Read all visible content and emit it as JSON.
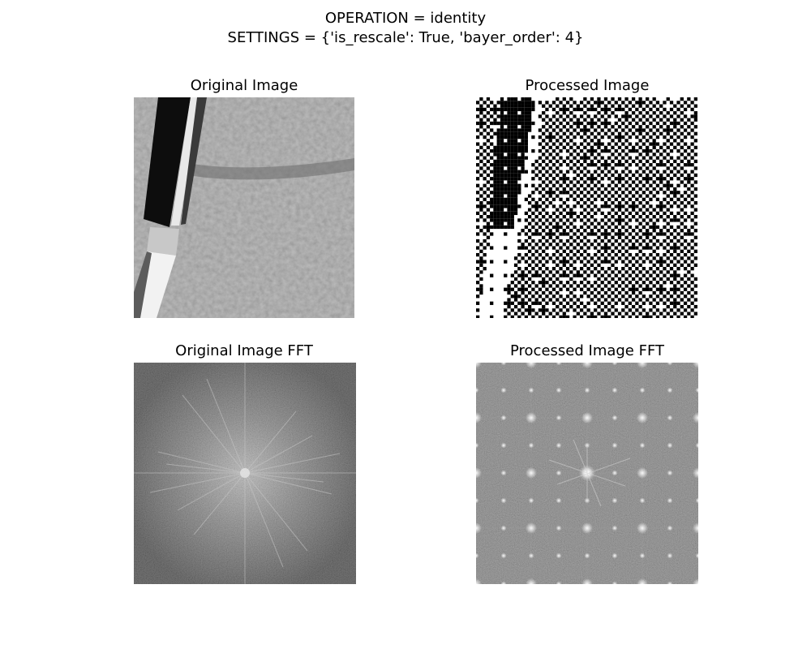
{
  "figure": {
    "operation_line": "OPERATION = identity",
    "settings_line": "SETTINGS = {'is_rescale': True, 'bayer_order': 4}"
  },
  "panels": [
    {
      "title": "Original Image"
    },
    {
      "title": "Processed Image"
    },
    {
      "title": "Original Image FFT"
    },
    {
      "title": "Processed Image FFT"
    }
  ],
  "colors": {
    "background": "#ffffff",
    "text": "#000000",
    "image_gray": "#8c8c8c",
    "fft_gray": "#5a5a5a"
  }
}
